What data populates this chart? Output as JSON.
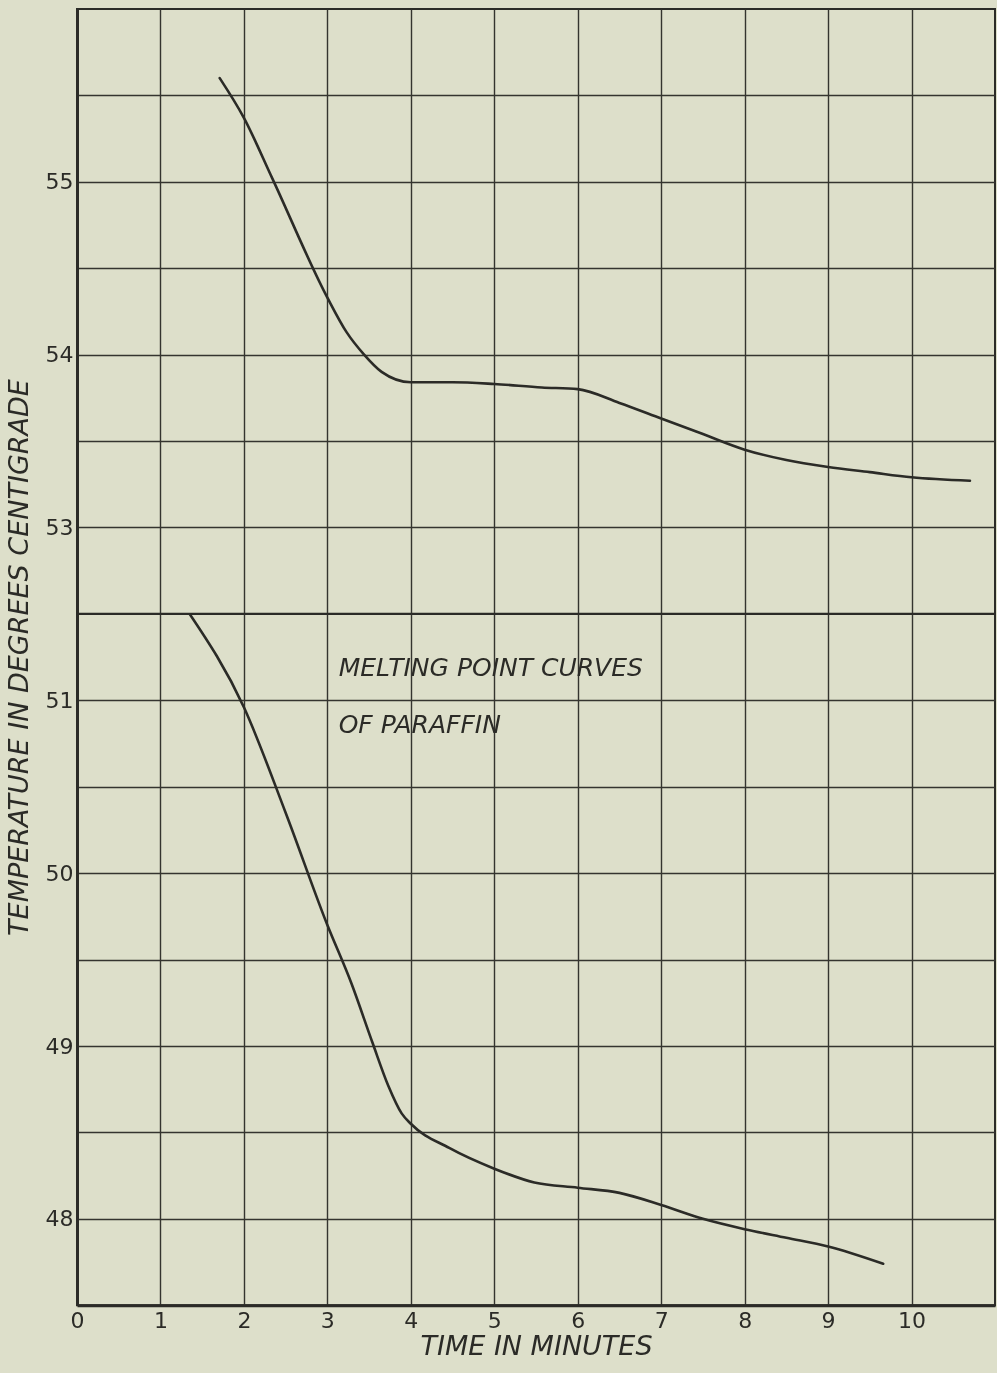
{
  "chart_data": [
    {
      "type": "line",
      "ylabel": "TEMPERATURE IN DEGREES CENTIGRADE",
      "x": [
        1.71,
        2.0,
        2.34,
        3.0,
        3.23,
        3.44,
        3.65,
        4.0,
        4.5,
        5.0,
        5.57,
        6.0,
        6.5,
        7.0,
        7.5,
        8.0,
        8.5,
        9.0,
        9.5,
        10.0,
        10.7
      ],
      "series": [
        {
          "color": "#2b2b27",
          "values": [
            55.6,
            55.37,
            55.02,
            54.33,
            54.13,
            54.0,
            53.9,
            53.84,
            53.84,
            53.83,
            53.81,
            53.8,
            53.72,
            53.63,
            53.54,
            53.45,
            53.39,
            53.35,
            53.32,
            53.29,
            53.27
          ]
        }
      ],
      "xlim": [
        0,
        11
      ],
      "ylim": [
        52.5,
        56
      ],
      "xticks": [
        0,
        1,
        2,
        3,
        4,
        5,
        6,
        7,
        8,
        9,
        10
      ],
      "yticks": [
        53,
        {
          "value": 53.5,
          "label": null
        },
        54,
        {
          "value": 54.5,
          "label": null
        },
        55,
        {
          "value": 55.5,
          "label": null
        }
      ],
      "grid": true,
      "tick_labels": "y"
    },
    {
      "type": "line",
      "title": "MELTING POINT CURVES OF PARAFFIN",
      "xlabel": "TIME IN MINUTES",
      "x": [
        1.35,
        2.0,
        2.5,
        3.0,
        3.29,
        3.54,
        3.73,
        3.89,
        4.0,
        4.46,
        5.0,
        5.48,
        6.0,
        6.5,
        7.0,
        7.5,
        8.0,
        8.5,
        9.0,
        9.66
      ],
      "series": [
        {
          "color": "#2b2b27",
          "values": [
            51.5,
            50.96,
            50.35,
            49.7,
            49.36,
            49.02,
            48.77,
            48.61,
            48.55,
            48.41,
            48.29,
            48.21,
            48.18,
            48.15,
            48.08,
            48.0,
            47.94,
            47.89,
            47.84,
            47.74
          ]
        }
      ],
      "xlim": [
        0,
        11
      ],
      "ylim": [
        47.5,
        51.5
      ],
      "xticks": [
        0,
        1,
        2,
        3,
        4,
        5,
        6,
        7,
        8,
        9,
        10
      ],
      "yticks": [
        48,
        {
          "value": 48.5,
          "label": null
        },
        49,
        {
          "value": 49.5,
          "label": null
        },
        50,
        {
          "value": 50.5,
          "label": null
        },
        51
      ],
      "grid": true
    }
  ]
}
